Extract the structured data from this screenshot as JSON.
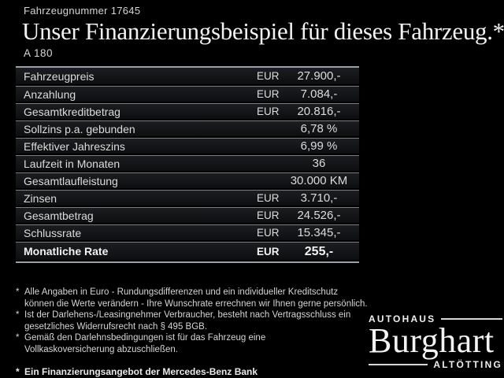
{
  "header": {
    "vehicle_number": "Fahrzeugnummer 17645",
    "title": "Unser Finanzierungsbeispiel für dieses Fahrzeug.*",
    "model": "A 180"
  },
  "table": {
    "rows": [
      {
        "label": "Fahrzeugpreis",
        "currency": "EUR",
        "value": "27.900,-"
      },
      {
        "label": "Anzahlung",
        "currency": "EUR",
        "value": "7.084,-"
      },
      {
        "label": "Gesamtkreditbetrag",
        "currency": "EUR",
        "value": "20.816,-"
      },
      {
        "label": "Sollzins p.a. gebunden",
        "currency": "",
        "value": "6,78 %"
      },
      {
        "label": "Effektiver Jahreszins",
        "currency": "",
        "value": "6,99 %"
      },
      {
        "label": "Laufzeit in Monaten",
        "currency": "",
        "value": "36"
      },
      {
        "label": "Gesamtlaufleistung",
        "currency": "",
        "value": "30.000 KM"
      },
      {
        "label": "Zinsen",
        "currency": "EUR",
        "value": "3.710,-"
      },
      {
        "label": "Gesamtbetrag",
        "currency": "EUR",
        "value": "24.526,-"
      },
      {
        "label": "Schlussrate",
        "currency": "EUR",
        "value": "15.345,-"
      },
      {
        "label": "Monatliche Rate",
        "currency": "EUR",
        "value": "255,-"
      }
    ]
  },
  "footnotes": {
    "marker": "*",
    "items": [
      {
        "lines": [
          "Alle Angaben in Euro - Rundungsdifferenzen und ein individueller Kreditschutz",
          "können die Werte verändern - Ihre Wunschrate errechnen wir Ihnen gerne persönlich."
        ]
      },
      {
        "lines": [
          "Ist der Darlehens-/Leasingnehmer Verbraucher, besteht nach Vertragsschluss ein",
          "gesetzliches Widerrufsrecht nach § 495 BGB."
        ]
      },
      {
        "lines": [
          "Gemäß den Darlehnsbedingungen ist für das Fahrzeug eine",
          "Vollkaskoversicherung abzuschließen."
        ]
      }
    ],
    "offer": "Ein Finanzierungsangebot der Mercedes-Benz Bank"
  },
  "logo": {
    "line1": "AUTOHAUS",
    "name": "Burghart",
    "line2": "ALTÖTTING"
  },
  "colors": {
    "background": "#000000",
    "text": "#e3e3e3",
    "separator": "#787d85",
    "table_border": "#9aa0a8"
  }
}
